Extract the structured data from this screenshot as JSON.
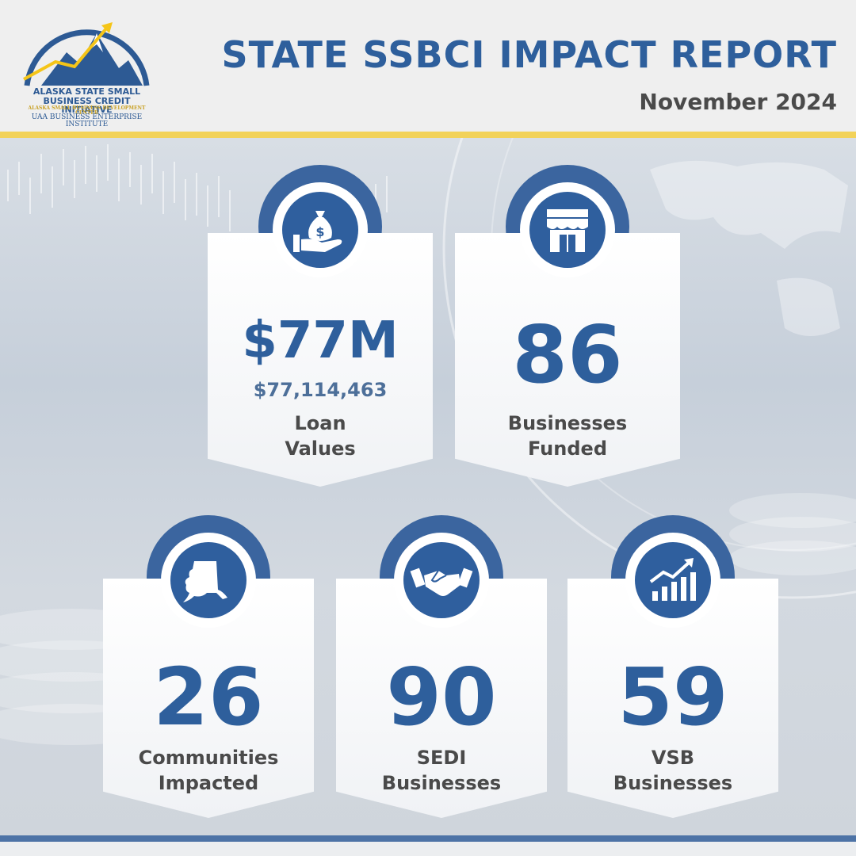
{
  "header": {
    "title": "STATE SSBCI IMPACT REPORT",
    "date": "November 2024",
    "logo": {
      "line1": "ALASKA STATE SMALL",
      "line2": "BUSINESS CREDIT INITIATIVE",
      "line3": "ALASKA SMALL BUSINESS DEVELOPMENT CENTER",
      "line4": "UAA BUSINESS ENTERPRISE INSTITUTE"
    }
  },
  "stats": {
    "loan_values": {
      "value": "$77M",
      "detail": "$77,114,463",
      "label_line1": "Loan",
      "label_line2": "Values",
      "icon": "money-bag-hand-icon"
    },
    "businesses_funded": {
      "value": "86",
      "label_line1": "Businesses",
      "label_line2": "Funded",
      "icon": "storefront-icon"
    },
    "communities_impacted": {
      "value": "26",
      "label_line1": "Communities",
      "label_line2": "Impacted",
      "icon": "alaska-map-icon"
    },
    "sedi_businesses": {
      "value": "90",
      "label_line1": "SEDI",
      "label_line2": "Businesses",
      "icon": "handshake-icon"
    },
    "vsb_businesses": {
      "value": "59",
      "label_line1": "VSB",
      "label_line2": "Businesses",
      "icon": "growth-chart-icon"
    }
  },
  "colors": {
    "brand_blue": "#2e5f9c",
    "arch_blue": "#3b659f",
    "accent_gold": "#f5c518",
    "text_gray": "#4a4a4a"
  }
}
